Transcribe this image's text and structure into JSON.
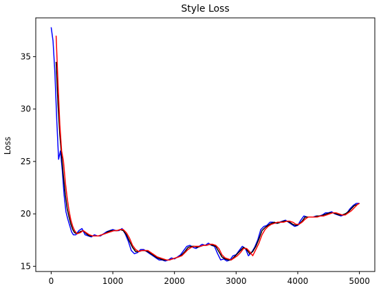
{
  "chart_data": {
    "type": "line",
    "title": "Style Loss",
    "xlabel": "",
    "ylabel": "Loss",
    "xlim": [
      -250,
      5250
    ],
    "ylim": [
      14.5,
      38.7
    ],
    "xticks": [
      0,
      1000,
      2000,
      3000,
      4000,
      5000
    ],
    "yticks": [
      15,
      20,
      25,
      30,
      35
    ],
    "grid": false,
    "legend": "none",
    "series": [
      {
        "color": "#0000ff",
        "x": [
          0,
          30,
          60,
          90,
          120,
          150,
          180,
          210,
          240,
          270,
          300,
          330,
          360,
          400,
          450,
          500,
          550,
          600,
          650,
          700,
          750,
          800,
          850,
          900,
          950,
          1000,
          1050,
          1100,
          1150,
          1200,
          1250,
          1300,
          1350,
          1400,
          1450,
          1500,
          1550,
          1600,
          1650,
          1700,
          1750,
          1800,
          1850,
          1900,
          1950,
          2000,
          2050,
          2100,
          2150,
          2200,
          2250,
          2300,
          2350,
          2400,
          2450,
          2500,
          2550,
          2600,
          2650,
          2700,
          2750,
          2800,
          2850,
          2900,
          2950,
          3000,
          3050,
          3100,
          3150,
          3200,
          3250,
          3300,
          3350,
          3400,
          3450,
          3500,
          3550,
          3600,
          3650,
          3700,
          3750,
          3800,
          3850,
          3900,
          3950,
          4000,
          4050,
          4100,
          4150,
          4200,
          4250,
          4300,
          4350,
          4400,
          4450,
          4500,
          4550,
          4600,
          4650,
          4700,
          4750,
          4800,
          4850,
          4900,
          4950,
          5000
        ],
        "y": [
          37.8,
          36.5,
          33.5,
          29.0,
          25.2,
          26.0,
          24.2,
          21.8,
          20.2,
          19.5,
          18.9,
          18.3,
          18.0,
          18.0,
          18.4,
          18.6,
          18.0,
          17.9,
          17.8,
          18.0,
          17.9,
          17.9,
          18.1,
          18.3,
          18.4,
          18.5,
          18.4,
          18.4,
          18.6,
          18.1,
          17.4,
          16.5,
          16.2,
          16.3,
          16.6,
          16.6,
          16.4,
          16.2,
          16.0,
          15.8,
          15.6,
          15.6,
          15.5,
          15.6,
          15.8,
          15.7,
          15.9,
          16.1,
          16.5,
          16.9,
          17.0,
          16.8,
          16.7,
          16.9,
          17.1,
          17.0,
          17.2,
          17.0,
          16.9,
          16.2,
          15.6,
          15.7,
          15.5,
          15.6,
          16.0,
          16.1,
          16.5,
          16.9,
          16.7,
          16.0,
          16.3,
          16.8,
          17.5,
          18.5,
          18.8,
          18.9,
          19.2,
          19.2,
          19.1,
          19.2,
          19.3,
          19.4,
          19.2,
          19.0,
          18.8,
          18.9,
          19.4,
          19.8,
          19.7,
          19.7,
          19.7,
          19.8,
          19.8,
          19.9,
          20.1,
          20.1,
          20.2,
          20.0,
          19.9,
          19.8,
          19.9,
          20.1,
          20.5,
          20.8,
          21.0,
          21.0
        ]
      },
      {
        "color": "#000000",
        "x": [
          80,
          110,
          140,
          170,
          200,
          230,
          260,
          290,
          320,
          350,
          380,
          420,
          470,
          520,
          570,
          620,
          670,
          720,
          770,
          820,
          870,
          920,
          970,
          1020,
          1070,
          1120,
          1170,
          1220,
          1270,
          1320,
          1370,
          1420,
          1470,
          1520,
          1570,
          1620,
          1670,
          1720,
          1770,
          1820,
          1870,
          1920,
          1970,
          2020,
          2070,
          2120,
          2170,
          2220,
          2270,
          2320,
          2370,
          2420,
          2470,
          2520,
          2570,
          2620,
          2670,
          2720,
          2770,
          2820,
          2870,
          2920,
          2970,
          3020,
          3070,
          3120,
          3170,
          3220,
          3270,
          3320,
          3370,
          3420,
          3470,
          3520,
          3570,
          3620,
          3670,
          3720,
          3770,
          3820,
          3870,
          3920,
          3970,
          4020,
          4070,
          4120,
          4170,
          4220,
          4270,
          4320,
          4370,
          4420,
          4470,
          4520,
          4570,
          4620,
          4670,
          4720,
          4770,
          4820,
          4870,
          4920,
          4970,
          5000
        ],
        "y": [
          34.5,
          30.5,
          27.5,
          25.5,
          23.5,
          21.8,
          20.5,
          19.7,
          19.0,
          18.5,
          18.2,
          18.1,
          18.3,
          18.4,
          18.1,
          17.9,
          17.9,
          17.9,
          17.9,
          18.0,
          18.1,
          18.3,
          18.4,
          18.4,
          18.4,
          18.5,
          18.4,
          18.0,
          17.4,
          16.8,
          16.4,
          16.4,
          16.5,
          16.5,
          16.4,
          16.2,
          16.0,
          15.8,
          15.7,
          15.6,
          15.6,
          15.6,
          15.7,
          15.8,
          15.9,
          16.1,
          16.4,
          16.8,
          16.9,
          16.9,
          16.8,
          16.9,
          17.0,
          17.0,
          17.1,
          17.0,
          16.9,
          16.4,
          15.9,
          15.7,
          15.6,
          15.6,
          15.9,
          16.2,
          16.5,
          16.8,
          16.6,
          16.2,
          16.4,
          16.9,
          17.6,
          18.4,
          18.7,
          18.9,
          19.1,
          19.2,
          19.1,
          19.2,
          19.3,
          19.3,
          19.2,
          19.0,
          18.9,
          19.0,
          19.3,
          19.7,
          19.7,
          19.7,
          19.7,
          19.8,
          19.8,
          19.9,
          20.0,
          20.1,
          20.1,
          20.0,
          19.9,
          19.9,
          20.0,
          20.2,
          20.5,
          20.8,
          20.9,
          21.0
        ]
      },
      {
        "color": "#ff0000",
        "x": [
          80,
          110,
          140,
          170,
          200,
          230,
          260,
          290,
          320,
          350,
          380,
          420,
          470,
          520,
          570,
          620,
          670,
          720,
          770,
          820,
          870,
          920,
          970,
          1020,
          1070,
          1120,
          1170,
          1220,
          1270,
          1320,
          1370,
          1420,
          1470,
          1520,
          1570,
          1620,
          1670,
          1720,
          1770,
          1820,
          1870,
          1920,
          1970,
          2020,
          2070,
          2120,
          2170,
          2220,
          2270,
          2320,
          2370,
          2420,
          2470,
          2520,
          2570,
          2620,
          2670,
          2720,
          2770,
          2820,
          2870,
          2920,
          2970,
          3020,
          3070,
          3120,
          3170,
          3220,
          3270,
          3320,
          3370,
          3420,
          3470,
          3520,
          3570,
          3620,
          3670,
          3720,
          3770,
          3820,
          3870,
          3920,
          3970,
          4020,
          4070,
          4120,
          4170,
          4220,
          4270,
          4320,
          4370,
          4420,
          4470,
          4520,
          4570,
          4620,
          4670,
          4720,
          4770,
          4820,
          4870,
          4920,
          4970,
          5000
        ],
        "y": [
          37.0,
          32.5,
          28.5,
          26.0,
          25.0,
          23.0,
          21.5,
          20.3,
          19.4,
          18.8,
          18.4,
          18.1,
          18.2,
          18.4,
          18.2,
          18.0,
          17.9,
          17.9,
          17.9,
          18.0,
          18.1,
          18.2,
          18.3,
          18.4,
          18.4,
          18.5,
          18.5,
          18.2,
          17.7,
          17.0,
          16.6,
          16.4,
          16.5,
          16.5,
          16.5,
          16.3,
          16.1,
          15.9,
          15.8,
          15.7,
          15.6,
          15.6,
          15.7,
          15.8,
          15.9,
          16.0,
          16.3,
          16.6,
          16.8,
          16.9,
          16.9,
          16.9,
          17.0,
          17.0,
          17.1,
          17.1,
          17.0,
          16.7,
          16.1,
          15.8,
          15.7,
          15.6,
          15.8,
          16.0,
          16.3,
          16.7,
          16.7,
          16.4,
          16.0,
          16.6,
          17.2,
          18.0,
          18.5,
          18.8,
          19.0,
          19.1,
          19.2,
          19.2,
          19.2,
          19.3,
          19.3,
          19.2,
          19.0,
          19.0,
          19.2,
          19.5,
          19.7,
          19.7,
          19.7,
          19.7,
          19.8,
          19.8,
          19.9,
          20.0,
          20.1,
          20.1,
          20.0,
          19.9,
          19.9,
          20.1,
          20.3,
          20.6,
          20.9,
          21.0
        ]
      }
    ]
  }
}
